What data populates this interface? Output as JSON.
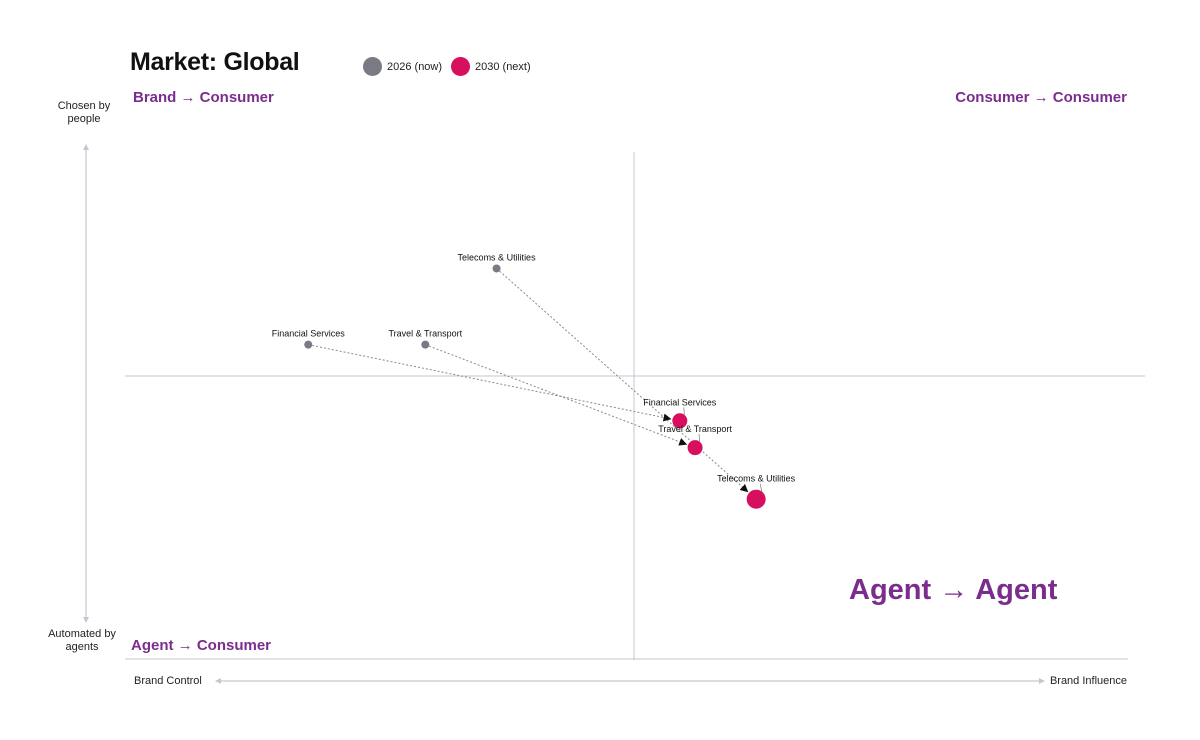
{
  "title": "Market: Global",
  "legend": [
    {
      "label": "2026 (now)",
      "color": "#7a7a84"
    },
    {
      "label": "2030 (next)",
      "color": "#d80e5e"
    }
  ],
  "quadrants": {
    "top_left": "Brand → Consumer",
    "top_right": "Consumer → Consumer",
    "bottom_left": "Agent → Consumer",
    "bottom_right": "Agent → Agent"
  },
  "colors": {
    "quadrant_label": "#7b2d8e",
    "axis_line": "#c6c6d2",
    "arrow": "#8a8a8a"
  },
  "y_axis": {
    "top_label": "Chosen by people",
    "bottom_label": "Automated by agents"
  },
  "x_axis": {
    "left_label": "Brand Control",
    "right_label": "Brand Influence"
  },
  "chart_data": {
    "type": "scatter",
    "title": "Market: Global",
    "xlim": [
      -1,
      1
    ],
    "ylim": [
      -1,
      1
    ],
    "series": [
      {
        "name": "2026 (now)",
        "color": "#7a7a84",
        "points": [
          {
            "label": "Telecoms & Utilities",
            "x": -0.27,
            "y": 0.48
          },
          {
            "label": "Financial Services",
            "x": -0.64,
            "y": 0.14
          },
          {
            "label": "Travel & Transport",
            "x": -0.41,
            "y": 0.14
          }
        ]
      },
      {
        "name": "2030 (next)",
        "color": "#d80e5e",
        "points": [
          {
            "label": "Financial Services",
            "x": 0.09,
            "y": -0.2
          },
          {
            "label": "Travel & Transport",
            "x": 0.12,
            "y": -0.32
          },
          {
            "label": "Telecoms & Utilities",
            "x": 0.24,
            "y": -0.55
          }
        ]
      }
    ],
    "transitions": [
      {
        "from": "Telecoms & Utilities",
        "to": "Telecoms & Utilities"
      },
      {
        "from": "Financial Services",
        "to": "Financial Services"
      },
      {
        "from": "Travel & Transport",
        "to": "Travel & Transport"
      }
    ],
    "grid": false,
    "legend_position": "top-left"
  }
}
